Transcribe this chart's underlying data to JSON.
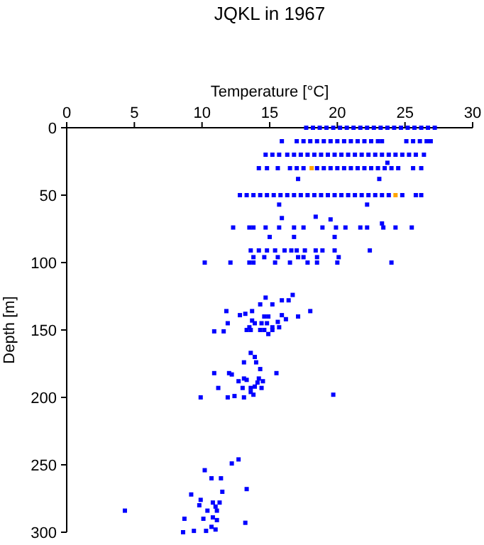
{
  "chart_data": {
    "type": "scatter",
    "title": "JQKL in 1967",
    "xlabel": "Temperature [°C]",
    "ylabel": "Depth [m]",
    "xlim": [
      0,
      30
    ],
    "ylim": [
      300,
      0
    ],
    "xticks": [
      0,
      5,
      10,
      15,
      20,
      25,
      30
    ],
    "yticks": [
      0,
      50,
      100,
      150,
      200,
      250,
      300
    ],
    "grid": false,
    "marker": "square",
    "series": [
      {
        "color": "#0000ff",
        "x": [
          17.7,
          18.2,
          18.7,
          19.2,
          19.7,
          20.2,
          20.7,
          21.2,
          21.7,
          22.2,
          22.7,
          23.2,
          23.7,
          24.2,
          24.7,
          25.2,
          25.7,
          26.2,
          26.7,
          27.2
        ],
        "values": [
          0,
          0,
          0,
          0,
          0,
          0,
          0,
          0,
          0,
          0,
          0,
          0,
          0,
          0,
          0,
          0,
          0,
          0,
          0,
          0
        ]
      },
      {
        "color": "#0000ff",
        "x": [
          15.9,
          17.0,
          17.5,
          18.0,
          18.5,
          19.0,
          19.5,
          20.0,
          20.5,
          21.0,
          21.5,
          22.0,
          22.5,
          23.0,
          23.3,
          25.1,
          25.6,
          26.1,
          26.6,
          26.9
        ],
        "values": [
          10,
          10,
          10,
          10,
          10,
          10,
          10,
          10,
          10,
          10,
          10,
          10,
          10,
          10,
          10,
          10,
          10,
          10,
          10,
          10
        ]
      },
      {
        "color": "#0000ff",
        "x": [
          14.7,
          15.2,
          15.7,
          16.3,
          16.8,
          17.3,
          17.8,
          18.3,
          18.8,
          19.3,
          19.8,
          20.3,
          20.8,
          21.3,
          21.8,
          22.3,
          22.8,
          23.3,
          23.8,
          24.3,
          24.8,
          25.3,
          25.8,
          26.4
        ],
        "values": [
          20,
          20,
          20,
          20,
          20,
          20,
          20,
          20,
          20,
          20,
          20,
          20,
          20,
          20,
          20,
          20,
          20,
          20,
          20,
          20,
          20,
          20,
          20,
          20
        ]
      },
      {
        "color": "#0000ff",
        "x": [
          14.2,
          14.8,
          15.6,
          16.5,
          17.0,
          17.5,
          18.5,
          19.0,
          19.5,
          20.0,
          20.5,
          21.0,
          21.5,
          22.0,
          22.5,
          23.0,
          23.5,
          24.0,
          24.5,
          25.6,
          26.2
        ],
        "values": [
          30,
          30,
          30,
          30,
          30,
          30,
          30,
          30,
          30,
          30,
          30,
          30,
          30,
          30,
          30,
          30,
          30,
          30,
          30,
          30,
          30
        ]
      },
      {
        "color": "#0000ff",
        "x": [
          12.8,
          13.3,
          13.8,
          14.3,
          14.8,
          15.3,
          15.8,
          16.3,
          16.8,
          17.3,
          17.8,
          18.3,
          18.8,
          19.3,
          19.8,
          20.3,
          20.8,
          21.3,
          21.8,
          22.3,
          22.8,
          23.3,
          23.8,
          24.8,
          25.8,
          26.2
        ],
        "values": [
          50,
          50,
          50,
          50,
          50,
          50,
          50,
          50,
          50,
          50,
          50,
          50,
          50,
          50,
          50,
          50,
          50,
          50,
          50,
          50,
          50,
          50,
          50,
          50,
          50,
          50
        ]
      },
      {
        "color": "#0000ff",
        "x": [
          23.7,
          17.1,
          23.1,
          15.7,
          22.2,
          15.9,
          18.4,
          19.5,
          23.3,
          15,
          16.8,
          19.8
        ],
        "values": [
          26,
          38,
          38,
          57,
          57,
          67,
          66,
          68,
          71,
          81,
          81,
          81
        ]
      },
      {
        "color": "#0000ff",
        "x": [
          12.3,
          13.5,
          13.8,
          14.7,
          15.7,
          16.8,
          17.5,
          18.9,
          19.9,
          20.6,
          21.7,
          22.2,
          23.4,
          24.3,
          25.5
        ],
        "values": [
          74,
          74,
          74,
          74,
          74,
          74,
          74,
          74,
          74,
          74,
          74,
          74,
          74,
          74,
          74
        ]
      },
      {
        "color": "#0000ff",
        "x": [
          13.6,
          14.2,
          14.8,
          15.4,
          16.1,
          16.6,
          17,
          17.6,
          18.4,
          18.9,
          19.8,
          22.4,
          13.8,
          14.6,
          15.6,
          17.1,
          17.5,
          18.5,
          20.1
        ],
        "values": [
          91,
          91,
          91,
          91,
          91,
          91,
          91,
          91,
          91,
          91,
          91,
          91,
          96,
          96,
          96,
          96,
          96,
          96,
          96
        ]
      },
      {
        "color": "#0000ff",
        "x": [
          10.2,
          12.1,
          13.5,
          13.8,
          15.4,
          16.5,
          17.8,
          18.5,
          20,
          24
        ],
        "values": [
          100,
          100,
          100,
          100,
          100,
          100,
          100,
          100,
          100,
          100
        ]
      },
      {
        "color": "#0000ff",
        "x": [
          11.8,
          14.7,
          16.7,
          15.9,
          16.4,
          14.3,
          15.2,
          18,
          17.1,
          12.8,
          13.2,
          13.7,
          14.6,
          14.9,
          15.9,
          16.2,
          13.7,
          11.9,
          13.9,
          14.4,
          14.8,
          15.6,
          15.2,
          13.5,
          15.7,
          10.9,
          11.6,
          13.3,
          13.6,
          14.3,
          14.6,
          15.2,
          14.9
        ],
        "values": [
          136,
          126,
          124,
          128,
          128,
          131,
          131,
          136,
          140,
          139,
          138,
          136,
          140,
          140,
          139,
          142,
          143,
          145,
          145,
          145,
          145,
          144,
          148,
          148,
          148,
          151,
          151,
          150,
          150,
          150,
          150,
          150,
          153
        ]
      },
      {
        "color": "#0000ff",
        "x": [
          13.6,
          13.9,
          13.1,
          14,
          14.3,
          10.9,
          12,
          12.2,
          15.5,
          13.1,
          12.7,
          13.3,
          14.2,
          14.5,
          14.1,
          13,
          13.6,
          13.9,
          14.4,
          11.2,
          13.6,
          13.8,
          12.4,
          11.9,
          13.1,
          9.9,
          19.7
        ],
        "values": [
          167,
          170,
          174,
          174,
          179,
          182,
          182,
          183,
          182,
          186,
          188,
          187,
          186,
          188,
          189,
          193,
          193,
          192,
          193,
          193,
          196,
          198,
          199,
          200,
          200,
          200,
          198
        ]
      },
      {
        "color": "#0000ff",
        "x": [
          12.7,
          12.2,
          10.2,
          10.7,
          11.4,
          11.5,
          13.3,
          9.2,
          9.9,
          10.8,
          11.3,
          9.8,
          11,
          10.4,
          11.1,
          4.3,
          8.7,
          10.1,
          10.8,
          11.1,
          13.2,
          10.7,
          11,
          8.6,
          9.4,
          10.3
        ],
        "values": [
          246,
          249,
          254,
          260,
          260,
          270,
          268,
          272,
          276,
          278,
          278,
          280,
          281,
          284,
          284,
          284,
          290,
          290,
          289,
          291,
          293,
          296,
          298,
          300,
          299,
          299
        ]
      },
      {
        "color": "#ffa500",
        "x": [
          18.1,
          24.3
        ],
        "values": [
          30,
          50
        ]
      }
    ]
  }
}
